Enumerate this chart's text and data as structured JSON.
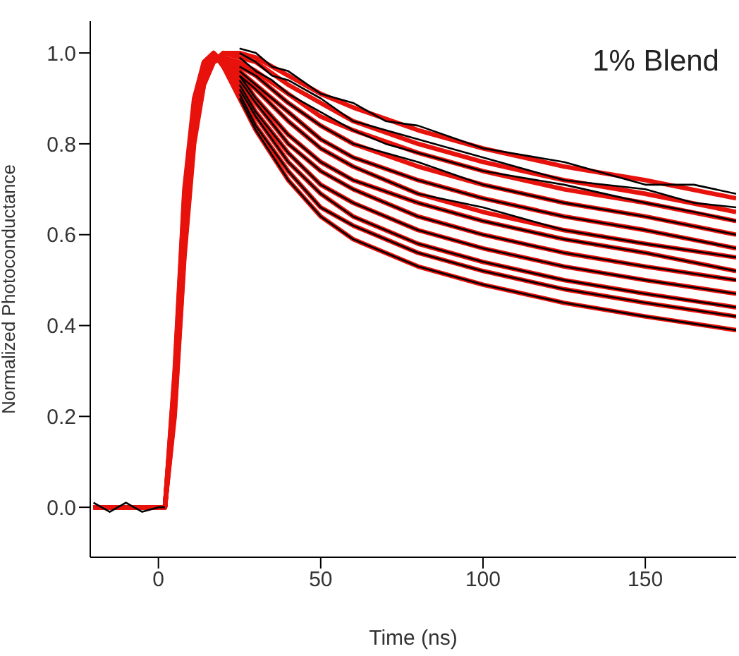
{
  "chart_data": {
    "type": "line",
    "xlabel": "Time (ns)",
    "ylabel": "Normalized Photoconductance",
    "annotations": [
      "1% Blend"
    ],
    "xlim": [
      -21,
      178
    ],
    "xticks": [
      0,
      50,
      100,
      150
    ],
    "ylim": [
      -0.11,
      1.07
    ],
    "yticks": [
      {
        "value": 0,
        "label": "0.0"
      },
      {
        "value": 0.2,
        "label": "0.2"
      },
      {
        "value": 0.4,
        "label": "0.4"
      },
      {
        "value": 0.6,
        "label": "0.6"
      },
      {
        "value": 0.8,
        "label": "0.8"
      },
      {
        "value": 1,
        "label": "1.0"
      }
    ],
    "grid": false,
    "marker": "none",
    "line_style": "solid",
    "series": [
      {
        "color": "#000000",
        "x": [
          -20,
          -15,
          -10,
          -5,
          0,
          2,
          10,
          25,
          30,
          35,
          40,
          50,
          60,
          70,
          80,
          100,
          125,
          150,
          165,
          178
        ],
        "values": [
          0.01,
          -0.01,
          0.01,
          -0.01,
          0,
          0,
          null,
          1.01,
          1.0,
          0.97,
          0.96,
          0.91,
          0.89,
          0.85,
          0.84,
          0.79,
          0.76,
          0.71,
          0.71,
          0.69
        ]
      },
      {
        "color": "#000000",
        "x": [
          25,
          30,
          35,
          40,
          50,
          60,
          70,
          80,
          100,
          125,
          150,
          165,
          178
        ],
        "values": [
          1.0,
          0.98,
          0.95,
          0.94,
          0.9,
          0.85,
          0.83,
          0.81,
          0.77,
          0.72,
          0.7,
          0.67,
          0.66
        ]
      },
      {
        "color": "#000000",
        "x": [
          25,
          30,
          35,
          40,
          50,
          60,
          70,
          80,
          100,
          125,
          150,
          165,
          178
        ],
        "values": [
          0.99,
          0.96,
          0.94,
          0.91,
          0.87,
          0.83,
          0.8,
          0.78,
          0.74,
          0.71,
          0.67,
          0.65,
          0.63
        ]
      },
      {
        "color": "#000000",
        "x": [
          25,
          30,
          40,
          50,
          60,
          80,
          100,
          125,
          150,
          178
        ],
        "values": [
          0.97,
          0.95,
          0.89,
          0.84,
          0.8,
          0.76,
          0.71,
          0.67,
          0.64,
          0.6
        ]
      },
      {
        "color": "#000000",
        "x": [
          25,
          30,
          40,
          50,
          60,
          80,
          100,
          125,
          150,
          178
        ],
        "values": [
          0.96,
          0.93,
          0.87,
          0.81,
          0.77,
          0.72,
          0.68,
          0.64,
          0.61,
          0.57
        ]
      },
      {
        "color": "#000000",
        "x": [
          25,
          30,
          40,
          50,
          60,
          80,
          100,
          125,
          150,
          178
        ],
        "values": [
          0.95,
          0.92,
          0.85,
          0.79,
          0.75,
          0.69,
          0.66,
          0.61,
          0.58,
          0.55
        ]
      },
      {
        "color": "#000000",
        "x": [
          25,
          30,
          40,
          50,
          60,
          80,
          100,
          125,
          150,
          178
        ],
        "values": [
          0.95,
          0.9,
          0.82,
          0.76,
          0.72,
          0.67,
          0.63,
          0.59,
          0.56,
          0.52
        ]
      },
      {
        "color": "#000000",
        "x": [
          25,
          30,
          40,
          50,
          60,
          80,
          100,
          125,
          150,
          178
        ],
        "values": [
          0.94,
          0.89,
          0.8,
          0.74,
          0.7,
          0.64,
          0.6,
          0.56,
          0.53,
          0.5
        ]
      },
      {
        "color": "#000000",
        "x": [
          25,
          30,
          40,
          50,
          60,
          80,
          100,
          125,
          150,
          178
        ],
        "values": [
          0.93,
          0.87,
          0.78,
          0.71,
          0.67,
          0.61,
          0.57,
          0.53,
          0.5,
          0.47
        ]
      },
      {
        "color": "#000000",
        "x": [
          25,
          30,
          40,
          50,
          60,
          80,
          100,
          125,
          150,
          178
        ],
        "values": [
          0.92,
          0.86,
          0.76,
          0.69,
          0.64,
          0.58,
          0.54,
          0.5,
          0.47,
          0.44
        ]
      },
      {
        "color": "#000000",
        "x": [
          25,
          30,
          40,
          50,
          60,
          80,
          100,
          125,
          150,
          178
        ],
        "values": [
          0.91,
          0.84,
          0.74,
          0.66,
          0.62,
          0.56,
          0.52,
          0.48,
          0.45,
          0.42
        ]
      },
      {
        "color": "#000000",
        "x": [
          25,
          30,
          40,
          50,
          60,
          80,
          100,
          125,
          150,
          178
        ],
        "values": [
          0.9,
          0.83,
          0.72,
          0.64,
          0.59,
          0.53,
          0.49,
          0.45,
          0.42,
          0.39
        ]
      },
      {
        "color": "#e8120c",
        "x": [
          -20,
          0,
          2,
          5,
          8,
          11,
          14,
          17,
          20,
          25,
          30,
          40,
          50,
          60,
          80,
          100,
          125,
          150,
          178
        ],
        "values": [
          0,
          0,
          0,
          0.2,
          0.55,
          0.8,
          0.93,
          0.98,
          1.0,
          1.0,
          0.99,
          0.95,
          0.91,
          0.88,
          0.83,
          0.79,
          0.75,
          0.72,
          0.68
        ]
      },
      {
        "color": "#e8120c",
        "x": [
          -20,
          0,
          2,
          5,
          8,
          11,
          14,
          17,
          20,
          25,
          30,
          40,
          50,
          60,
          80,
          100,
          125,
          150,
          178
        ],
        "values": [
          0,
          0,
          0,
          0.21,
          0.56,
          0.81,
          0.93,
          0.98,
          1.0,
          0.99,
          0.98,
          0.93,
          0.89,
          0.85,
          0.8,
          0.76,
          0.72,
          0.69,
          0.65
        ]
      },
      {
        "color": "#e8120c",
        "x": [
          -20,
          0,
          2,
          5,
          8,
          11,
          14,
          17,
          20,
          25,
          30,
          40,
          50,
          60,
          80,
          100,
          125,
          150,
          178
        ],
        "values": [
          0,
          0,
          0,
          0.22,
          0.58,
          0.82,
          0.94,
          0.98,
          0.99,
          0.98,
          0.96,
          0.91,
          0.86,
          0.83,
          0.78,
          0.74,
          0.7,
          0.67,
          0.63
        ]
      },
      {
        "color": "#e8120c",
        "x": [
          -20,
          0,
          2,
          5,
          8,
          11,
          14,
          17,
          20,
          25,
          30,
          40,
          50,
          60,
          80,
          100,
          125,
          150,
          178
        ],
        "values": [
          0,
          0,
          0,
          0.23,
          0.59,
          0.83,
          0.94,
          0.99,
          0.99,
          0.97,
          0.95,
          0.89,
          0.84,
          0.8,
          0.75,
          0.71,
          0.67,
          0.64,
          0.6
        ]
      },
      {
        "color": "#e8120c",
        "x": [
          -20,
          0,
          2,
          5,
          8,
          11,
          14,
          17,
          20,
          25,
          30,
          40,
          50,
          60,
          80,
          100,
          125,
          150,
          178
        ],
        "values": [
          0,
          0,
          0,
          0.24,
          0.6,
          0.84,
          0.95,
          0.99,
          0.99,
          0.96,
          0.93,
          0.87,
          0.81,
          0.77,
          0.72,
          0.68,
          0.64,
          0.61,
          0.57
        ]
      },
      {
        "color": "#e8120c",
        "x": [
          -20,
          0,
          2,
          5,
          8,
          11,
          14,
          17,
          20,
          25,
          30,
          40,
          50,
          60,
          80,
          100,
          125,
          150,
          178
        ],
        "values": [
          0,
          0,
          0,
          0.25,
          0.62,
          0.85,
          0.95,
          0.99,
          0.99,
          0.95,
          0.92,
          0.85,
          0.79,
          0.75,
          0.69,
          0.65,
          0.61,
          0.58,
          0.55
        ]
      },
      {
        "color": "#e8120c",
        "x": [
          -20,
          0,
          2,
          5,
          8,
          11,
          14,
          17,
          20,
          25,
          30,
          40,
          50,
          60,
          80,
          100,
          125,
          150,
          178
        ],
        "values": [
          0,
          0,
          0,
          0.25,
          0.63,
          0.85,
          0.96,
          0.99,
          0.98,
          0.95,
          0.9,
          0.82,
          0.76,
          0.72,
          0.67,
          0.63,
          0.59,
          0.56,
          0.52
        ]
      },
      {
        "color": "#e8120c",
        "x": [
          -20,
          0,
          2,
          5,
          8,
          11,
          14,
          17,
          20,
          25,
          30,
          40,
          50,
          60,
          80,
          100,
          125,
          150,
          178
        ],
        "values": [
          0,
          0,
          0,
          0.26,
          0.65,
          0.86,
          0.96,
          0.99,
          0.98,
          0.94,
          0.89,
          0.8,
          0.74,
          0.7,
          0.64,
          0.6,
          0.56,
          0.53,
          0.5
        ]
      },
      {
        "color": "#e8120c",
        "x": [
          -20,
          0,
          2,
          5,
          8,
          11,
          14,
          17,
          20,
          25,
          30,
          40,
          50,
          60,
          80,
          100,
          125,
          150,
          178
        ],
        "values": [
          0,
          0,
          0,
          0.27,
          0.66,
          0.87,
          0.97,
          0.99,
          0.98,
          0.93,
          0.87,
          0.78,
          0.71,
          0.67,
          0.61,
          0.57,
          0.53,
          0.5,
          0.47
        ]
      },
      {
        "color": "#e8120c",
        "x": [
          -20,
          0,
          2,
          5,
          8,
          11,
          14,
          17,
          20,
          25,
          30,
          40,
          50,
          60,
          80,
          100,
          125,
          150,
          178
        ],
        "values": [
          0,
          0,
          0,
          0.28,
          0.67,
          0.88,
          0.97,
          1.0,
          0.98,
          0.92,
          0.86,
          0.76,
          0.69,
          0.64,
          0.58,
          0.54,
          0.5,
          0.47,
          0.44
        ]
      },
      {
        "color": "#e8120c",
        "x": [
          -20,
          0,
          2,
          5,
          8,
          11,
          14,
          17,
          20,
          25,
          30,
          40,
          50,
          60,
          80,
          100,
          125,
          150,
          178
        ],
        "values": [
          0,
          0,
          0,
          0.29,
          0.69,
          0.89,
          0.98,
          1.0,
          0.97,
          0.91,
          0.84,
          0.74,
          0.66,
          0.62,
          0.56,
          0.52,
          0.48,
          0.45,
          0.42
        ]
      },
      {
        "color": "#e8120c",
        "x": [
          -20,
          0,
          2,
          5,
          8,
          11,
          14,
          17,
          20,
          25,
          30,
          40,
          50,
          60,
          80,
          100,
          125,
          150,
          178
        ],
        "values": [
          0,
          0,
          0,
          0.3,
          0.7,
          0.9,
          0.98,
          1.0,
          0.97,
          0.9,
          0.83,
          0.72,
          0.64,
          0.59,
          0.53,
          0.49,
          0.45,
          0.42,
          0.39
        ]
      }
    ]
  }
}
